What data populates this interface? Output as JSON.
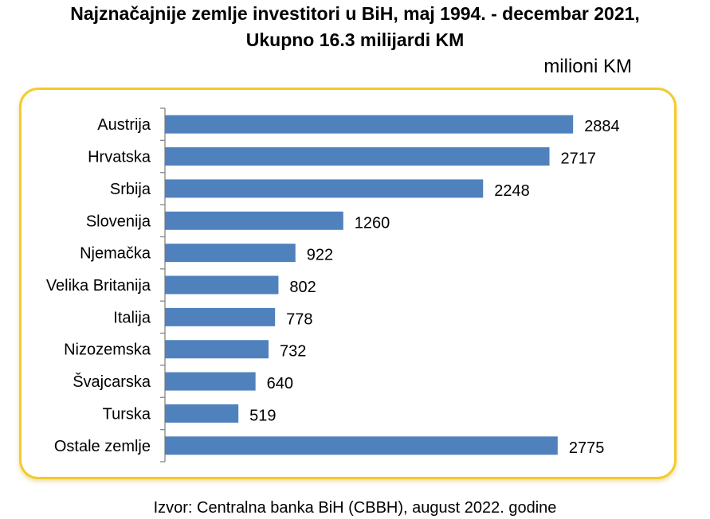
{
  "chart_data": {
    "type": "bar",
    "orientation": "horizontal",
    "title": "Najznačajnije zemlje investitori u BiH, maj 1994. - decembar 2021,",
    "subtitle": "Ukupno 16.3 milijardi KM",
    "unit_label": "milioni KM",
    "categories": [
      "Austrija",
      "Hrvatska",
      "Srbija",
      "Slovenija",
      "Njemačka",
      "Velika Britanija",
      "Italija",
      "Nizozemska",
      "Švajcarska",
      "Turska",
      "Ostale zemlje"
    ],
    "values": [
      2884,
      2717,
      2248,
      1260,
      922,
      802,
      778,
      732,
      640,
      519,
      2775
    ],
    "xlim": [
      0,
      3000
    ],
    "bar_color": "#4f81bd",
    "grid": false,
    "legend": "none",
    "source": "Izvor: Centralna banka BiH (CBBH), august 2022. godine"
  }
}
